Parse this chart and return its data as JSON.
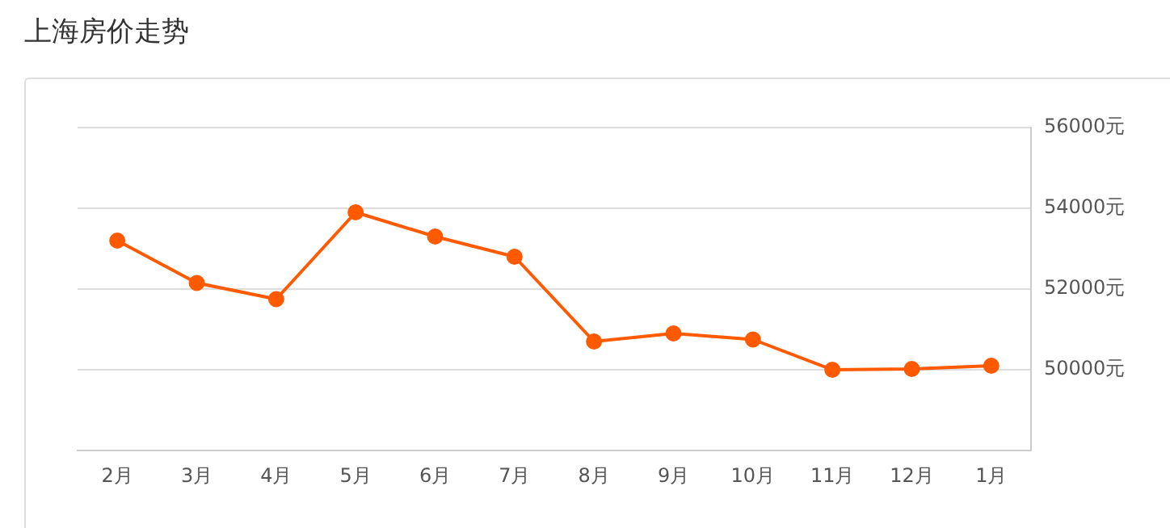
{
  "chart_data": {
    "type": "line",
    "title": "上海房价走势",
    "categories": [
      "2月",
      "3月",
      "4月",
      "5月",
      "6月",
      "7月",
      "8月",
      "9月",
      "10月",
      "11月",
      "12月",
      "1月"
    ],
    "series": [
      {
        "color": "#ff5a00",
        "values": [
          53200,
          52150,
          51750,
          53900,
          53300,
          52800,
          50700,
          50900,
          50750,
          50000,
          50020,
          50100
        ]
      }
    ],
    "ylim": [
      48000,
      56000
    ],
    "yticks": [
      {
        "value": 48000,
        "label": null
      },
      {
        "value": 50000,
        "label": "50000元"
      },
      {
        "value": 52000,
        "label": "52000元"
      },
      {
        "value": 54000,
        "label": "54000元"
      },
      {
        "value": 56000,
        "label": "56000元"
      }
    ],
    "grid": "y",
    "marker": "circle",
    "line_style": "solid",
    "legend": false
  }
}
